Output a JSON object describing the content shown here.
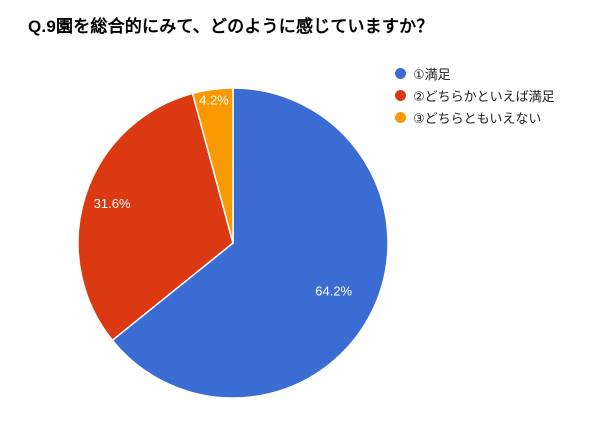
{
  "header": {
    "title": "Q.9園を総合的にみて、どのように感じていますか？"
  },
  "legend": {
    "position": "right",
    "items": [
      {
        "label": "①満足"
      },
      {
        "label": "②どちらかといえば満足"
      },
      {
        "label": "③どちらともいえない"
      }
    ]
  },
  "chart_data": {
    "type": "pie",
    "title": "Q.9園を総合的にみて、どのように感じていますか？",
    "categories": [
      "①満足",
      "②どちらかといえば満足",
      "③どちらともいえない"
    ],
    "values": [
      64.2,
      31.6,
      4.2
    ],
    "unit": "%",
    "slice_labels": [
      "64.2%",
      "31.6%",
      "4.2%"
    ],
    "colors": [
      "#3B6CD4",
      "#DB3912",
      "#FB9902"
    ],
    "label_color": "#ffffff",
    "start_angle_deg": 0,
    "direction": "clockwise",
    "legend_position": "right"
  }
}
